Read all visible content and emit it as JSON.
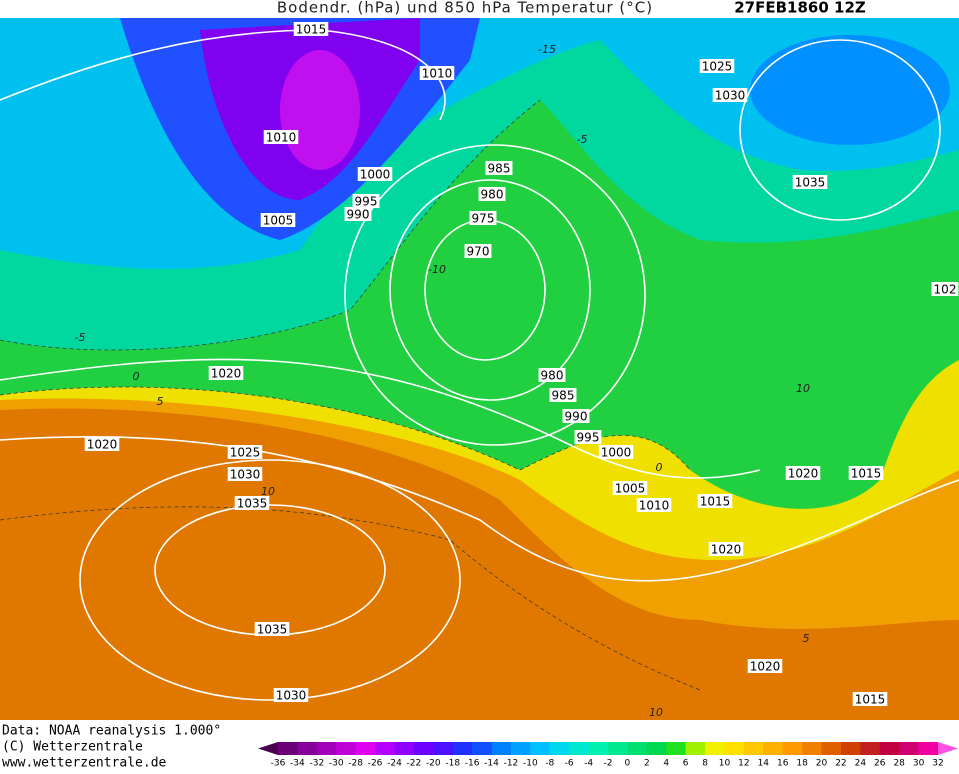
{
  "header": {
    "title": "Bodendr. (hPa) und 850 hPa Temperatur (°C)",
    "date": "27FEB1860 12Z"
  },
  "map": {
    "isobar_labels": [
      "1015",
      "1010",
      "1010",
      "1000",
      "995",
      "990",
      "1005",
      "985",
      "980",
      "975",
      "970",
      "1025",
      "1030",
      "1035",
      "102",
      "1020",
      "1020",
      "1025",
      "1030",
      "1035",
      "980",
      "985",
      "990",
      "995",
      "1000",
      "1005",
      "1010",
      "1015",
      "1020",
      "1015",
      "1020",
      "1035",
      "1030",
      "1020",
      "1015"
    ],
    "temperature_labels": [
      "-15",
      "-5",
      "-10",
      "-5",
      "0",
      "5",
      "10",
      "10",
      "0",
      "5",
      "10"
    ]
  },
  "footer": {
    "data_source": "Data: NOAA reanalysis 1.000°",
    "copyright": "(C) Wetterzentrale",
    "url": "www.wetterzentrale.de"
  },
  "colorbar": {
    "ticks": [
      -36,
      -34,
      -32,
      -30,
      -28,
      -26,
      -24,
      -22,
      -20,
      -18,
      -16,
      -14,
      -12,
      -10,
      -8,
      -6,
      -4,
      -2,
      0,
      2,
      4,
      6,
      8,
      10,
      12,
      14,
      16,
      18,
      20,
      22,
      24,
      26,
      28,
      30,
      32
    ],
    "colors": [
      "#4b0050",
      "#6a0078",
      "#86009a",
      "#a000b8",
      "#c000d8",
      "#e000f0",
      "#b400ff",
      "#9000ff",
      "#6c00ff",
      "#4a10ff",
      "#2030ff",
      "#1050ff",
      "#0080ff",
      "#00a0ff",
      "#00c0ff",
      "#00d8f0",
      "#00e8d0",
      "#00f0b0",
      "#00e890",
      "#00e070",
      "#00d850",
      "#20e020",
      "#a0f000",
      "#f0f000",
      "#ffe000",
      "#ffc800",
      "#ffb000",
      "#ff9a00",
      "#f08000",
      "#e06000",
      "#d04000",
      "#c02020",
      "#c00040",
      "#d00070",
      "#f000a0",
      "#ff50e0"
    ]
  }
}
